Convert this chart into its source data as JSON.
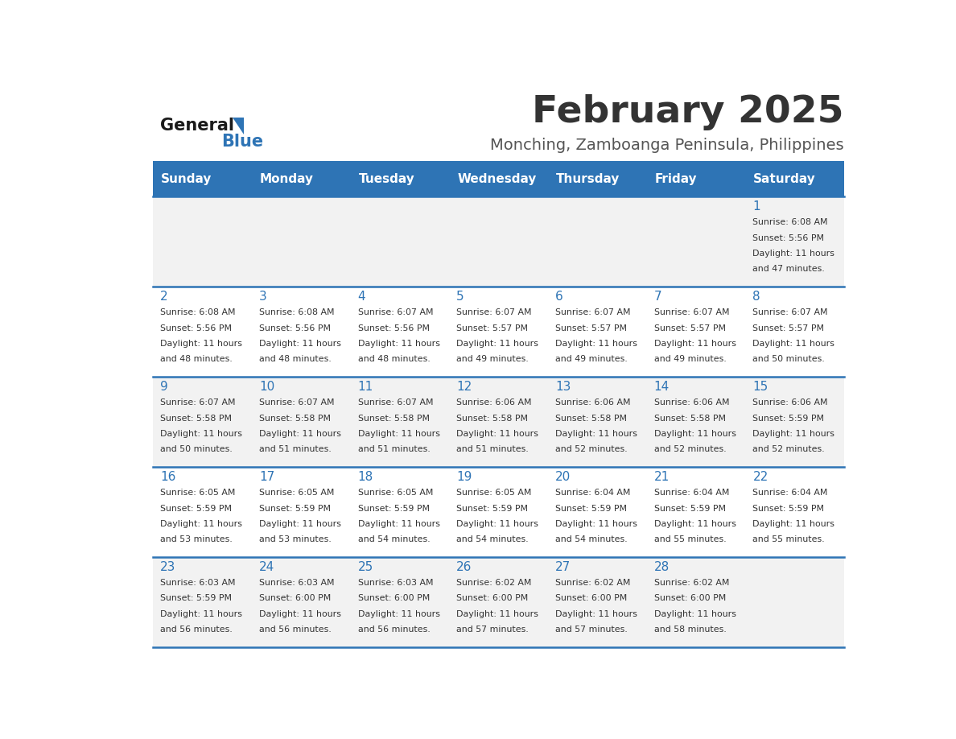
{
  "title": "February 2025",
  "subtitle": "Monching, Zamboanga Peninsula, Philippines",
  "days_of_week": [
    "Sunday",
    "Monday",
    "Tuesday",
    "Wednesday",
    "Thursday",
    "Friday",
    "Saturday"
  ],
  "header_bg": "#2E74B5",
  "header_text_color": "#FFFFFF",
  "row_bg_odd": "#F2F2F2",
  "row_bg_even": "#FFFFFF",
  "cell_text_color": "#333333",
  "day_number_color": "#2E74B5",
  "line_color": "#2E74B5",
  "title_color": "#333333",
  "subtitle_color": "#555555",
  "logo_general_color": "#1a1a1a",
  "logo_blue_color": "#2E74B5",
  "calendar_data": [
    {
      "day": 1,
      "col": 6,
      "row": 0,
      "sunrise": "6:08 AM",
      "sunset": "5:56 PM",
      "daylight": "11 hours and 47 minutes."
    },
    {
      "day": 2,
      "col": 0,
      "row": 1,
      "sunrise": "6:08 AM",
      "sunset": "5:56 PM",
      "daylight": "11 hours and 48 minutes."
    },
    {
      "day": 3,
      "col": 1,
      "row": 1,
      "sunrise": "6:08 AM",
      "sunset": "5:56 PM",
      "daylight": "11 hours and 48 minutes."
    },
    {
      "day": 4,
      "col": 2,
      "row": 1,
      "sunrise": "6:07 AM",
      "sunset": "5:56 PM",
      "daylight": "11 hours and 48 minutes."
    },
    {
      "day": 5,
      "col": 3,
      "row": 1,
      "sunrise": "6:07 AM",
      "sunset": "5:57 PM",
      "daylight": "11 hours and 49 minutes."
    },
    {
      "day": 6,
      "col": 4,
      "row": 1,
      "sunrise": "6:07 AM",
      "sunset": "5:57 PM",
      "daylight": "11 hours and 49 minutes."
    },
    {
      "day": 7,
      "col": 5,
      "row": 1,
      "sunrise": "6:07 AM",
      "sunset": "5:57 PM",
      "daylight": "11 hours and 49 minutes."
    },
    {
      "day": 8,
      "col": 6,
      "row": 1,
      "sunrise": "6:07 AM",
      "sunset": "5:57 PM",
      "daylight": "11 hours and 50 minutes."
    },
    {
      "day": 9,
      "col": 0,
      "row": 2,
      "sunrise": "6:07 AM",
      "sunset": "5:58 PM",
      "daylight": "11 hours and 50 minutes."
    },
    {
      "day": 10,
      "col": 1,
      "row": 2,
      "sunrise": "6:07 AM",
      "sunset": "5:58 PM",
      "daylight": "11 hours and 51 minutes."
    },
    {
      "day": 11,
      "col": 2,
      "row": 2,
      "sunrise": "6:07 AM",
      "sunset": "5:58 PM",
      "daylight": "11 hours and 51 minutes."
    },
    {
      "day": 12,
      "col": 3,
      "row": 2,
      "sunrise": "6:06 AM",
      "sunset": "5:58 PM",
      "daylight": "11 hours and 51 minutes."
    },
    {
      "day": 13,
      "col": 4,
      "row": 2,
      "sunrise": "6:06 AM",
      "sunset": "5:58 PM",
      "daylight": "11 hours and 52 minutes."
    },
    {
      "day": 14,
      "col": 5,
      "row": 2,
      "sunrise": "6:06 AM",
      "sunset": "5:58 PM",
      "daylight": "11 hours and 52 minutes."
    },
    {
      "day": 15,
      "col": 6,
      "row": 2,
      "sunrise": "6:06 AM",
      "sunset": "5:59 PM",
      "daylight": "11 hours and 52 minutes."
    },
    {
      "day": 16,
      "col": 0,
      "row": 3,
      "sunrise": "6:05 AM",
      "sunset": "5:59 PM",
      "daylight": "11 hours and 53 minutes."
    },
    {
      "day": 17,
      "col": 1,
      "row": 3,
      "sunrise": "6:05 AM",
      "sunset": "5:59 PM",
      "daylight": "11 hours and 53 minutes."
    },
    {
      "day": 18,
      "col": 2,
      "row": 3,
      "sunrise": "6:05 AM",
      "sunset": "5:59 PM",
      "daylight": "11 hours and 54 minutes."
    },
    {
      "day": 19,
      "col": 3,
      "row": 3,
      "sunrise": "6:05 AM",
      "sunset": "5:59 PM",
      "daylight": "11 hours and 54 minutes."
    },
    {
      "day": 20,
      "col": 4,
      "row": 3,
      "sunrise": "6:04 AM",
      "sunset": "5:59 PM",
      "daylight": "11 hours and 54 minutes."
    },
    {
      "day": 21,
      "col": 5,
      "row": 3,
      "sunrise": "6:04 AM",
      "sunset": "5:59 PM",
      "daylight": "11 hours and 55 minutes."
    },
    {
      "day": 22,
      "col": 6,
      "row": 3,
      "sunrise": "6:04 AM",
      "sunset": "5:59 PM",
      "daylight": "11 hours and 55 minutes."
    },
    {
      "day": 23,
      "col": 0,
      "row": 4,
      "sunrise": "6:03 AM",
      "sunset": "5:59 PM",
      "daylight": "11 hours and 56 minutes."
    },
    {
      "day": 24,
      "col": 1,
      "row": 4,
      "sunrise": "6:03 AM",
      "sunset": "6:00 PM",
      "daylight": "11 hours and 56 minutes."
    },
    {
      "day": 25,
      "col": 2,
      "row": 4,
      "sunrise": "6:03 AM",
      "sunset": "6:00 PM",
      "daylight": "11 hours and 56 minutes."
    },
    {
      "day": 26,
      "col": 3,
      "row": 4,
      "sunrise": "6:02 AM",
      "sunset": "6:00 PM",
      "daylight": "11 hours and 57 minutes."
    },
    {
      "day": 27,
      "col": 4,
      "row": 4,
      "sunrise": "6:02 AM",
      "sunset": "6:00 PM",
      "daylight": "11 hours and 57 minutes."
    },
    {
      "day": 28,
      "col": 5,
      "row": 4,
      "sunrise": "6:02 AM",
      "sunset": "6:00 PM",
      "daylight": "11 hours and 58 minutes."
    }
  ]
}
